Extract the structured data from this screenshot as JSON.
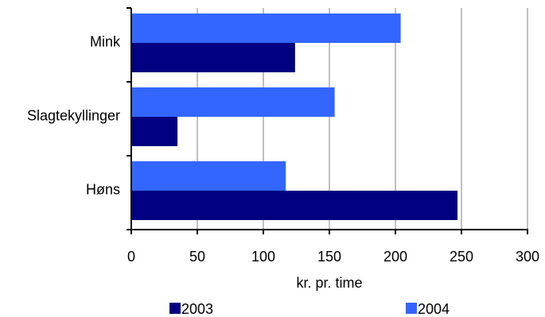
{
  "chart_data": {
    "type": "bar",
    "orientation": "horizontal",
    "title": "",
    "xlabel": "kr. pr. time",
    "ylabel": "",
    "xlim": [
      0,
      300
    ],
    "x_ticks": [
      "0",
      "50",
      "100",
      "150",
      "200",
      "250",
      "300"
    ],
    "categories": [
      "Mink",
      "Slagtekyllinger",
      "Høns"
    ],
    "series": [
      {
        "name": "2003",
        "color": "#000080",
        "values": [
          124,
          35,
          247
        ]
      },
      {
        "name": "2004",
        "color": "#3366ff",
        "values": [
          204,
          154,
          117
        ]
      }
    ],
    "grid": "vertical",
    "legend_position": "bottom"
  }
}
